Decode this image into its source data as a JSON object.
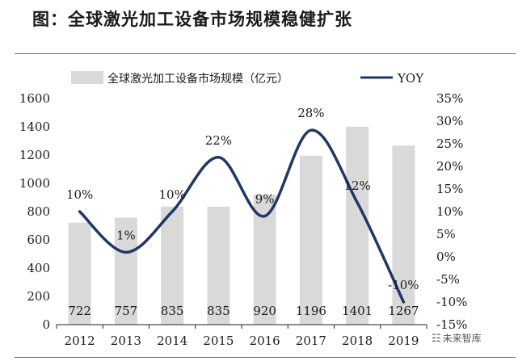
{
  "figure_title": "图：全球激光加工设备市场规模稳健扩张",
  "watermark": {
    "text": "未来智库",
    "icon": "wechat-icon"
  },
  "colors": {
    "bar": "#d9d9d9",
    "line": "#1f3864",
    "text": "#1a1a1a",
    "axis": "#222222"
  },
  "chart_data": {
    "type": "bar",
    "categories": [
      "2012",
      "2013",
      "2014",
      "2015",
      "2016",
      "2017",
      "2018",
      "2019"
    ],
    "series": [
      {
        "name": "全球激光加工设备市场规模（亿元）",
        "type": "bar",
        "axis": "left",
        "values": [
          722,
          757,
          835,
          835,
          920,
          1196,
          1401,
          1267
        ],
        "data_labels": [
          "722",
          "757",
          "835",
          "835",
          "920",
          "1196",
          "1401",
          "1267"
        ]
      },
      {
        "name": "YOY",
        "type": "line",
        "axis": "right",
        "values": [
          10,
          1,
          10,
          22,
          9,
          28,
          12,
          -10
        ],
        "data_labels": [
          "10%",
          "1%",
          "10%",
          "22%",
          "9%",
          "28%",
          "12%",
          "-10%"
        ]
      }
    ],
    "y_left": {
      "ylim": [
        0,
        1600
      ],
      "ticks": [
        0,
        200,
        400,
        600,
        800,
        1000,
        1200,
        1400,
        1600
      ],
      "tick_labels": [
        "0",
        "200",
        "400",
        "600",
        "800",
        "1000",
        "1200",
        "1400",
        "1600"
      ]
    },
    "y_right": {
      "ylim": [
        -15,
        35
      ],
      "ticks": [
        -15,
        -10,
        -5,
        0,
        5,
        10,
        15,
        20,
        25,
        30,
        35
      ],
      "tick_labels": [
        "-15%",
        "-10%",
        "-5%",
        "0%",
        "5%",
        "10%",
        "15%",
        "20%",
        "25%",
        "30%",
        "35%"
      ]
    },
    "grid": false,
    "legend_position": "top"
  }
}
